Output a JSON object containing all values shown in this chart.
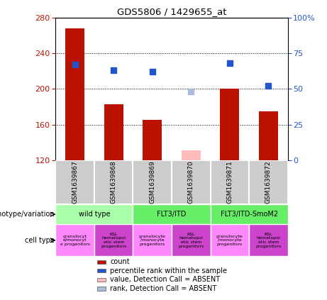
{
  "title": "GDS5806 / 1429655_at",
  "samples": [
    "GSM1639867",
    "GSM1639868",
    "GSM1639869",
    "GSM1639870",
    "GSM1639871",
    "GSM1639872"
  ],
  "bar_values": [
    268,
    183,
    165,
    null,
    200,
    175
  ],
  "bar_absent_values": [
    null,
    null,
    null,
    131,
    null,
    null
  ],
  "rank_values": [
    67,
    63,
    62,
    null,
    68,
    52
  ],
  "rank_absent_values": [
    null,
    null,
    null,
    48,
    null,
    null
  ],
  "bar_color": "#bb1100",
  "bar_absent_color": "#ffbbbb",
  "rank_color": "#2255cc",
  "rank_absent_color": "#aabbdd",
  "ylim_left": [
    120,
    280
  ],
  "ylim_right": [
    0,
    100
  ],
  "yticks_left": [
    120,
    160,
    200,
    240,
    280
  ],
  "yticks_right": [
    0,
    25,
    50,
    75,
    100
  ],
  "ytick_labels_right": [
    "0",
    "25",
    "50",
    "75",
    "100%"
  ],
  "geno_groups": [
    {
      "label": "wild type",
      "start": 0,
      "end": 1,
      "color": "#aaffaa"
    },
    {
      "label": "FLT3/ITD",
      "start": 2,
      "end": 3,
      "color": "#66ee66"
    },
    {
      "label": "FLT3/ITD-SmoM2",
      "start": 4,
      "end": 5,
      "color": "#66ee66"
    }
  ],
  "cell_colors": [
    "#ff88ff",
    "#cc44cc",
    "#ff88ff",
    "#cc44cc",
    "#ff88ff",
    "#cc44cc"
  ],
  "cell_labels": [
    "granulocyt\ne/monocyt\ne progenitor",
    "KSL\nhematopoi\netic stem\nprogenitors",
    "granulocyte\n/monocyte\nprogenitors",
    "KSL\nhematopoi\netic stem\nprogenitors",
    "granulocyte\n/monocyte\nprogenitors",
    "KSL\nhematopoi\netic stem\nprogenitors"
  ],
  "legend_items": [
    {
      "label": "count",
      "color": "#bb1100"
    },
    {
      "label": "percentile rank within the sample",
      "color": "#2255cc"
    },
    {
      "label": "value, Detection Call = ABSENT",
      "color": "#ffbbbb"
    },
    {
      "label": "rank, Detection Call = ABSENT",
      "color": "#aabbdd"
    }
  ],
  "sample_bg": "#cccccc",
  "plot_bg": "#ffffff"
}
